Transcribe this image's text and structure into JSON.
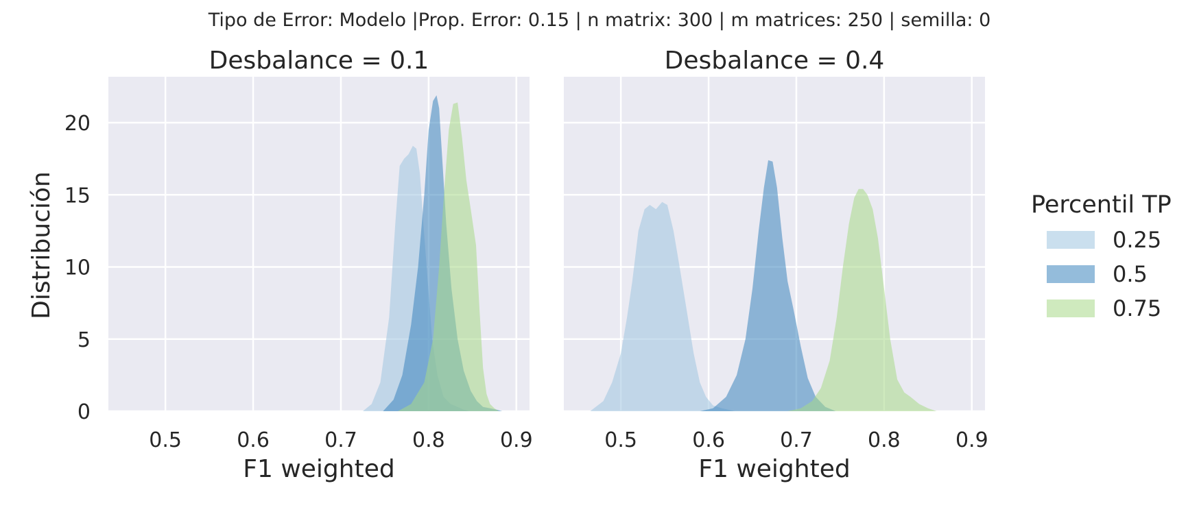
{
  "chart_data": {
    "type": "area",
    "suptitle": "Tipo de Error: Modelo |Prop. Error: 0.15 | n matrix: 300 | m matrices: 250 | semilla: 0",
    "ylabel": "Distribución",
    "xlabel": "F1 weighted",
    "xlim": [
      0.435,
      0.915
    ],
    "ylim": [
      0,
      23.2
    ],
    "xticks": [
      "0.5",
      "0.6",
      "0.7",
      "0.8",
      "0.9"
    ],
    "yticks": [
      "0",
      "5",
      "10",
      "15",
      "20"
    ],
    "grid": true,
    "legend": {
      "title": "Percentil TP",
      "placement": "right",
      "entries": [
        "0.25",
        "0.5",
        "0.75"
      ]
    },
    "colors": {
      "0.25": "#9ec4e0",
      "0.5": "#3d85bd",
      "0.75": "#a8d888",
      "panel_bg": "#eaeaf2",
      "grid": "#ffffff",
      "text": "#262626"
    },
    "panels": [
      {
        "title": "Desbalance = 0.1",
        "series": [
          {
            "name": "0.25",
            "x": [
              0.725,
              0.735,
              0.745,
              0.755,
              0.762,
              0.767,
              0.772,
              0.777,
              0.782,
              0.786,
              0.79,
              0.794,
              0.799,
              0.804,
              0.81,
              0.817,
              0.825,
              0.833,
              0.84,
              0.847
            ],
            "y": [
              0,
              0.5,
              2.0,
              6.5,
              13.0,
              17.0,
              17.5,
              17.8,
              18.4,
              18.2,
              16.5,
              13.0,
              9.0,
              5.0,
              2.5,
              1.0,
              0.5,
              0.3,
              0.1,
              0
            ]
          },
          {
            "name": "0.5",
            "x": [
              0.748,
              0.76,
              0.77,
              0.78,
              0.788,
              0.795,
              0.8,
              0.805,
              0.809,
              0.812,
              0.816,
              0.82,
              0.826,
              0.833,
              0.84,
              0.848,
              0.855,
              0.862,
              0.87,
              0.878,
              0.884
            ],
            "y": [
              0,
              0.8,
              2.5,
              6.0,
              10.0,
              15.0,
              19.5,
              21.5,
              21.9,
              21.0,
              17.0,
              13.0,
              8.5,
              5.0,
              2.8,
              1.4,
              0.7,
              0.3,
              0.2,
              0.1,
              0
            ]
          },
          {
            "name": "0.75",
            "x": [
              0.765,
              0.78,
              0.795,
              0.805,
              0.812,
              0.818,
              0.823,
              0.828,
              0.833,
              0.838,
              0.843,
              0.848,
              0.854,
              0.858,
              0.862,
              0.866,
              0.87,
              0.875,
              0.88
            ],
            "y": [
              0,
              0.5,
              2.0,
              5.0,
              10.0,
              15.5,
              19.5,
              21.3,
              21.4,
              19.0,
              16.0,
              14.0,
              11.5,
              7.0,
              3.0,
              1.2,
              0.5,
              0.2,
              0
            ]
          }
        ]
      },
      {
        "title": "Desbalance = 0.4",
        "series": [
          {
            "name": "0.25",
            "x": [
              0.465,
              0.48,
              0.49,
              0.5,
              0.507,
              0.513,
              0.52,
              0.527,
              0.533,
              0.54,
              0.547,
              0.553,
              0.56,
              0.567,
              0.575,
              0.583,
              0.59,
              0.597,
              0.605,
              0.615,
              0.63
            ],
            "y": [
              0,
              0.7,
              2.0,
              4.0,
              6.5,
              9.0,
              12.5,
              14.0,
              14.3,
              14.0,
              14.5,
              14.3,
              12.5,
              10.0,
              7.0,
              4.0,
              2.0,
              1.0,
              0.4,
              0.2,
              0
            ]
          },
          {
            "name": "0.5",
            "x": [
              0.59,
              0.605,
              0.62,
              0.632,
              0.642,
              0.65,
              0.657,
              0.663,
              0.668,
              0.673,
              0.678,
              0.684,
              0.69,
              0.697,
              0.705,
              0.713,
              0.722,
              0.733,
              0.745
            ],
            "y": [
              0,
              0.2,
              1.0,
              2.5,
              5.0,
              8.5,
              12.5,
              15.5,
              17.4,
              17.3,
              15.5,
              12.0,
              9.0,
              7.0,
              4.5,
              2.3,
              1.0,
              0.3,
              0
            ]
          },
          {
            "name": "0.75",
            "x": [
              0.69,
              0.705,
              0.718,
              0.728,
              0.738,
              0.746,
              0.753,
              0.76,
              0.766,
              0.771,
              0.776,
              0.781,
              0.787,
              0.793,
              0.8,
              0.807,
              0.815,
              0.823,
              0.83,
              0.84,
              0.85,
              0.86
            ],
            "y": [
              0,
              0.2,
              0.7,
              1.6,
              3.5,
              6.5,
              10.0,
              13.0,
              14.8,
              15.4,
              15.4,
              15.0,
              14.0,
              12.0,
              8.5,
              5.0,
              2.2,
              1.3,
              1.0,
              0.5,
              0.2,
              0
            ]
          }
        ]
      }
    ]
  }
}
